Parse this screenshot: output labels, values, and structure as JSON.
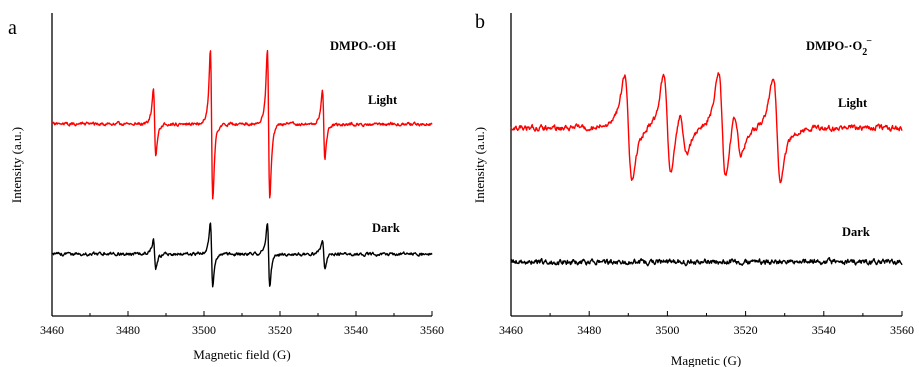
{
  "colors": {
    "light": "#ff0000",
    "dark": "#000000"
  },
  "chart_data": [
    {
      "type": "line",
      "panel_label": "a",
      "title": "",
      "xlabel": "Magnetic field (G)",
      "ylabel": "Intensity (a.u.)",
      "xlim": [
        3460,
        3560
      ],
      "xticks": [
        3460,
        3480,
        3500,
        3520,
        3540,
        3560
      ],
      "y_ticks_shown": false,
      "grid": false,
      "species_label": "DMPO-·OH",
      "series": [
        {
          "name": "Light",
          "color": "#ff0000",
          "pattern": "1:2:2:1 quartet",
          "line_positions": [
            3487,
            3502,
            3517,
            3531.5
          ],
          "relative_line_amplitudes": [
            0.45,
            1.0,
            1.0,
            0.45
          ],
          "offset": 0.62
        },
        {
          "name": "Dark",
          "color": "#000000",
          "pattern": "1:2:2:1 quartet",
          "line_positions": [
            3487,
            3502,
            3517,
            3531.5
          ],
          "relative_line_amplitudes": [
            0.2,
            0.42,
            0.42,
            0.2
          ],
          "offset": 0.0
        }
      ]
    },
    {
      "type": "line",
      "panel_label": "b",
      "title": "",
      "xlabel": "Magnetic (G)",
      "ylabel": "Intensity (a.u.)",
      "xlim": [
        3460,
        3560
      ],
      "xticks": [
        3460,
        3480,
        3500,
        3520,
        3540,
        3560
      ],
      "y_ticks_shown": false,
      "grid": false,
      "species_label_main": "DMPO-·O",
      "species_label_sub": "2",
      "species_label_sup": "−",
      "series": [
        {
          "name": "Light",
          "color": "#ff0000",
          "pattern": "broad sextet",
          "line_positions": [
            3490,
            3500,
            3504,
            3514,
            3518,
            3528
          ],
          "relative_line_amplitudes": [
            1.0,
            1.0,
            0.45,
            1.0,
            0.45,
            1.0
          ],
          "offset": 0.62
        },
        {
          "name": "Dark",
          "color": "#000000",
          "pattern": "noise only",
          "line_positions": [],
          "relative_line_amplitudes": [],
          "offset": 0.0
        }
      ]
    }
  ]
}
